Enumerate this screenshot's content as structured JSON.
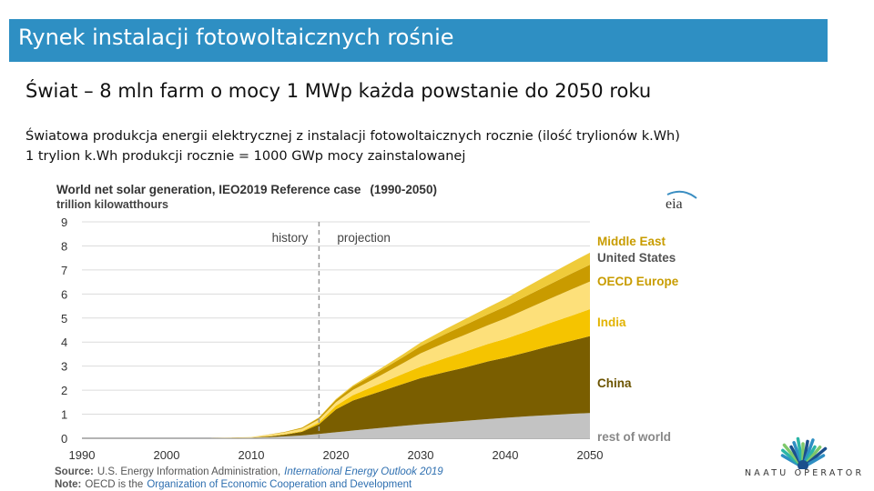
{
  "slide": {
    "title": "Rynek instalacji fotowoltaicznych rośnie",
    "subtitle": "Świat – 8 mln farm o mocy 1 MWp każda powstanie do 2050 roku",
    "description_line1": "Światowa produkcja energii elektrycznej z instalacji fotowoltaicznych rocznie (ilość trylionów k.Wh)",
    "description_line2": "1 trylion k.Wh produkcji rocznie = 1000 GWp mocy zainstalowanej"
  },
  "logo": {
    "text": "NAATU OPERATOR",
    "colors": [
      "#2e8fc3",
      "#2bb5a6",
      "#7ec86b",
      "#1b4f8c"
    ]
  },
  "chart_data": {
    "type": "area",
    "title": "World net solar generation, IEO2019 Reference case",
    "title_range": "(1990-2050)",
    "ylabel": "trillion kilowatthours",
    "xlabel": "",
    "logo": "eia",
    "x": [
      1990,
      2000,
      2005,
      2010,
      2012,
      2014,
      2016,
      2018,
      2020,
      2022,
      2025,
      2028,
      2030,
      2033,
      2035,
      2038,
      2040,
      2043,
      2045,
      2048,
      2050
    ],
    "xlim": [
      1990,
      2050
    ],
    "xticks": [
      1990,
      2000,
      2010,
      2020,
      2030,
      2040,
      2050
    ],
    "ylim": [
      0,
      9
    ],
    "yticks": [
      0,
      1,
      2,
      3,
      4,
      5,
      6,
      7,
      8,
      9
    ],
    "grid": true,
    "stacked": true,
    "divider_year": 2018,
    "annotations": [
      "history",
      "projection"
    ],
    "series": [
      {
        "name": "rest of world",
        "color": "#c3c3c3",
        "values": [
          0,
          0,
          0,
          0.02,
          0.04,
          0.08,
          0.12,
          0.18,
          0.25,
          0.32,
          0.42,
          0.52,
          0.58,
          0.66,
          0.72,
          0.8,
          0.85,
          0.92,
          0.96,
          1.02,
          1.05
        ]
      },
      {
        "name": "China",
        "color": "#7a5e00",
        "values": [
          0,
          0,
          0,
          0.01,
          0.03,
          0.07,
          0.15,
          0.4,
          0.95,
          1.25,
          1.5,
          1.75,
          1.92,
          2.1,
          2.2,
          2.4,
          2.5,
          2.7,
          2.85,
          3.05,
          3.2
        ]
      },
      {
        "name": "India",
        "color": "#f5c400",
        "values": [
          0,
          0,
          0,
          0.0,
          0.01,
          0.02,
          0.03,
          0.08,
          0.15,
          0.22,
          0.32,
          0.42,
          0.48,
          0.58,
          0.65,
          0.73,
          0.78,
          0.88,
          0.95,
          1.05,
          1.12
        ]
      },
      {
        "name": "OECD Europe",
        "color": "#fde07a",
        "values": [
          0,
          0,
          0,
          0.02,
          0.06,
          0.08,
          0.1,
          0.12,
          0.15,
          0.22,
          0.32,
          0.45,
          0.55,
          0.65,
          0.7,
          0.78,
          0.85,
          0.95,
          1.0,
          1.1,
          1.15
        ]
      },
      {
        "name": "United States",
        "color": "#c99b00",
        "values": [
          0,
          0,
          0,
          0.0,
          0.01,
          0.02,
          0.04,
          0.07,
          0.1,
          0.14,
          0.2,
          0.25,
          0.3,
          0.36,
          0.4,
          0.45,
          0.5,
          0.56,
          0.6,
          0.66,
          0.7
        ]
      },
      {
        "name": "Middle East",
        "color": "#efcb3a",
        "values": [
          0,
          0,
          0,
          0.0,
          0.0,
          0.0,
          0.01,
          0.02,
          0.03,
          0.05,
          0.08,
          0.12,
          0.15,
          0.2,
          0.24,
          0.29,
          0.32,
          0.38,
          0.42,
          0.47,
          0.5
        ]
      }
    ],
    "legend": [
      {
        "name": "Middle East",
        "color": "#c89c00"
      },
      {
        "name": "United States",
        "color": "#555555"
      },
      {
        "name": "OECD Europe",
        "color": "#c89c00"
      },
      {
        "name": "India",
        "color": "#e2b300"
      },
      {
        "name": "China",
        "color": "#6b5300"
      },
      {
        "name": "rest of world",
        "color": "#888888"
      }
    ],
    "legend_placement": "right",
    "source_label": "Source:",
    "source_org": "U.S. Energy Information Administration,",
    "source_pub": "International Energy Outlook 2019",
    "note_label": "Note:",
    "note_text_pre": "OECD is the",
    "note_text_link": "Organization of Economic Cooperation and Development"
  }
}
